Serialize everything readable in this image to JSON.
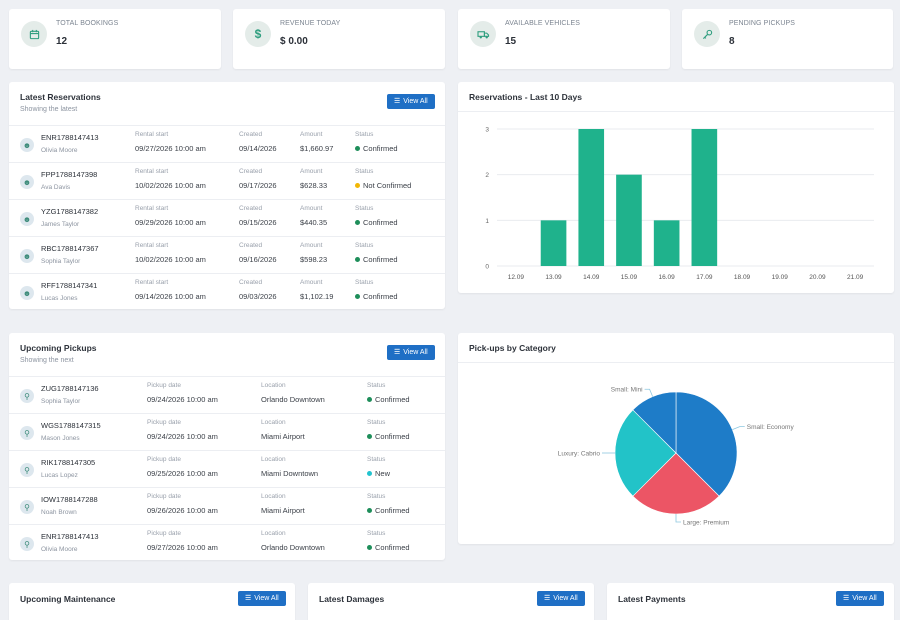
{
  "stats": [
    {
      "label": "TOTAL BOOKINGS",
      "value": "12",
      "icon": "calendar-icon"
    },
    {
      "label": "REVENUE TODAY",
      "value": "$ 0.00",
      "icon": "dollar-icon"
    },
    {
      "label": "AVAILABLE VEHICLES",
      "value": "15",
      "icon": "truck-icon"
    },
    {
      "label": "PENDING PICKUPS",
      "value": "8",
      "icon": "key-icon"
    }
  ],
  "reservations": {
    "title": "Latest Reservations",
    "subtitle": "Showing the latest",
    "button": "View All",
    "headers": {
      "rental": "Rental start",
      "created": "Created",
      "amount": "Amount",
      "status": "Status"
    },
    "rows": [
      {
        "code": "ENR1788147413",
        "name": "Olivia Moore",
        "rental": "09/27/2026 10:00 am",
        "created": "09/14/2026",
        "amount": "$1,660.97",
        "status": "Confirmed",
        "color": "#1e8e5a"
      },
      {
        "code": "FPP1788147398",
        "name": "Ava Davis",
        "rental": "10/02/2026 10:00 am",
        "created": "09/17/2026",
        "amount": "$628.33",
        "status": "Not Confirmed",
        "color": "#f2b705"
      },
      {
        "code": "YZG1788147382",
        "name": "James Taylor",
        "rental": "09/29/2026 10:00 am",
        "created": "09/15/2026",
        "amount": "$440.35",
        "status": "Confirmed",
        "color": "#1e8e5a"
      },
      {
        "code": "RBC1788147367",
        "name": "Sophia Taylor",
        "rental": "10/02/2026 10:00 am",
        "created": "09/16/2026",
        "amount": "$598.23",
        "status": "Confirmed",
        "color": "#1e8e5a"
      },
      {
        "code": "RFF1788147341",
        "name": "Lucas Jones",
        "rental": "09/14/2026 10:00 am",
        "created": "09/03/2026",
        "amount": "$1,102.19",
        "status": "Confirmed",
        "color": "#1e8e5a"
      }
    ]
  },
  "pickups": {
    "title": "Upcoming Pickups",
    "subtitle": "Showing the next",
    "button": "View All",
    "headers": {
      "date": "Pickup date",
      "location": "Location",
      "status": "Status"
    },
    "rows": [
      {
        "code": "ZUG1788147136",
        "name": "Sophia Taylor",
        "date": "09/24/2026 10:00 am",
        "location": "Orlando Downtown",
        "status": "Confirmed",
        "color": "#1e8e5a"
      },
      {
        "code": "WGS1788147315",
        "name": "Mason Jones",
        "date": "09/24/2026 10:00 am",
        "location": "Miami Airport",
        "status": "Confirmed",
        "color": "#1e8e5a"
      },
      {
        "code": "RIK1788147305",
        "name": "Lucas Lopez",
        "date": "09/25/2026 10:00 am",
        "location": "Miami Downtown",
        "status": "New",
        "color": "#22c3cf"
      },
      {
        "code": "IOW1788147288",
        "name": "Noah Brown",
        "date": "09/26/2026 10:00 am",
        "location": "Miami Airport",
        "status": "Confirmed",
        "color": "#1e8e5a"
      },
      {
        "code": "ENR1788147413",
        "name": "Olivia Moore",
        "date": "09/27/2026 10:00 am",
        "location": "Orlando Downtown",
        "status": "Confirmed",
        "color": "#1e8e5a"
      }
    ]
  },
  "bottom": [
    {
      "title": "Upcoming Maintenance",
      "button": "View All"
    },
    {
      "title": "Latest Damages",
      "button": "View All"
    },
    {
      "title": "Latest Payments",
      "button": "View All"
    }
  ],
  "chart_data": [
    {
      "type": "bar",
      "title": "Reservations - Last 10 Days",
      "categories": [
        "12.09",
        "13.09",
        "14.09",
        "15.09",
        "16.09",
        "17.09",
        "18.09",
        "19.09",
        "20.09",
        "21.09"
      ],
      "values": [
        0,
        1,
        3,
        2,
        1,
        3,
        0,
        0,
        0,
        0
      ],
      "ylim": [
        0,
        3
      ],
      "yticks": [
        "0",
        "1",
        "2",
        "3"
      ],
      "color": "#1fb28c",
      "grid": true
    },
    {
      "type": "pie",
      "title": "Pick-ups by Category",
      "labels": [
        "Small: Economy",
        "Large: Premium",
        "Luxury: Cabrio",
        "Small: Mini"
      ],
      "values": [
        3,
        2,
        2,
        1
      ],
      "colors": [
        "#1e7cc8",
        "#ec5565",
        "#22c3c8",
        "#1e7cc8"
      ]
    }
  ]
}
